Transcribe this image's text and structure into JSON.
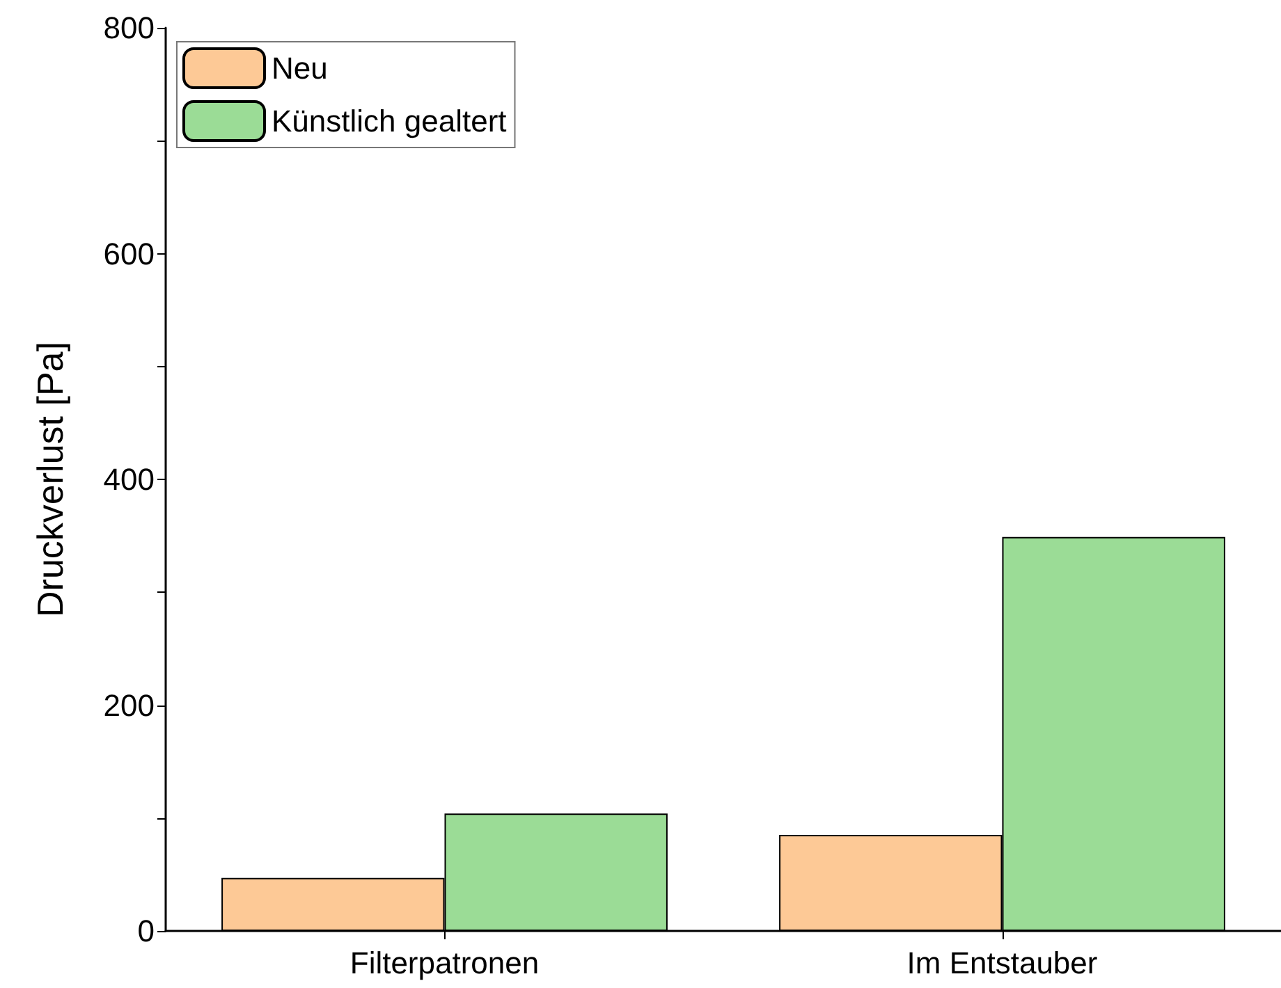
{
  "chart_data": {
    "type": "bar",
    "ylabel": "Druckverlust [Pa]",
    "categories": [
      "Filterpatronen",
      "Im Entstauber"
    ],
    "series": [
      {
        "name": "Neu",
        "color": "#fdc996",
        "values": [
          47,
          85
        ]
      },
      {
        "name": "Künstlich gealtert",
        "color": "#9bdc96",
        "values": [
          104,
          349
        ]
      }
    ],
    "ylim": [
      0,
      800
    ],
    "yticks": [
      0,
      {
        "value": 100,
        "label": null
      },
      200,
      {
        "value": 300,
        "label": null
      },
      400,
      {
        "value": 500,
        "label": null
      },
      600,
      {
        "value": 700,
        "label": null
      },
      800
    ],
    "grid": false,
    "legend": "top left"
  }
}
